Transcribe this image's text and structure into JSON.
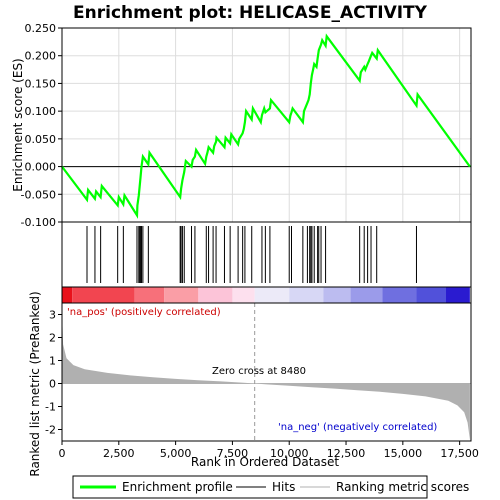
{
  "chart_data": {
    "type": "line",
    "title": "Enrichment plot: HELICASE_ACTIVITY",
    "xlabel": "Rank in Ordered Dataset",
    "ylabel_top": "Enrichment score (ES)",
    "ylabel_bottom": "Ranked list metric (PreRanked)",
    "x_range": [
      0,
      18000
    ],
    "es_ylim": [
      -0.1,
      0.25
    ],
    "metric_ylim": [
      -2.5,
      3.5
    ],
    "x_ticks": [
      "0",
      "2,500",
      "5,000",
      "7,500",
      "10,000",
      "12,500",
      "15,000",
      "17,500"
    ],
    "es_ticks": [
      "-0.100",
      "-0.050",
      "0.000",
      "0.050",
      "0.100",
      "0.150",
      "0.200",
      "0.250"
    ],
    "metric_ticks": [
      "-2",
      "-1",
      "0",
      "1",
      "2",
      "3"
    ],
    "series": [
      {
        "name": "Enrichment profile",
        "color": "#00ff00",
        "x": [
          0,
          1100,
          1150,
          1450,
          1500,
          1700,
          1750,
          2450,
          2500,
          2700,
          2750,
          3300,
          3320,
          3380,
          3420,
          3460,
          3500,
          3560,
          3800,
          3850,
          5200,
          5240,
          5300,
          5380,
          5450,
          5700,
          5750,
          5850,
          5900,
          6300,
          6350,
          6400,
          6450,
          6650,
          6700,
          6780,
          6800,
          7150,
          7200,
          7400,
          7450,
          7750,
          7800,
          7950,
          8000,
          8050,
          8100,
          8350,
          8400,
          8750,
          8800,
          8900,
          8950,
          9150,
          9200,
          10000,
          10050,
          10100,
          10150,
          10600,
          10650,
          10800,
          10850,
          10900,
          10950,
          11000,
          11050,
          11100,
          11200,
          11250,
          11300,
          11400,
          11450,
          11600,
          11650,
          13100,
          13150,
          13300,
          13350,
          13450,
          13500,
          13600,
          13650,
          13850,
          13900,
          15600,
          15650,
          17950
        ],
        "y": [
          0.0,
          -0.06,
          -0.042,
          -0.058,
          -0.045,
          -0.055,
          -0.035,
          -0.07,
          -0.055,
          -0.068,
          -0.052,
          -0.088,
          -0.07,
          -0.052,
          -0.035,
          -0.018,
          0.0,
          0.018,
          0.004,
          0.025,
          -0.055,
          -0.04,
          -0.025,
          -0.01,
          0.01,
          0.0,
          0.012,
          0.018,
          0.03,
          0.005,
          0.018,
          0.025,
          0.035,
          0.025,
          0.037,
          0.045,
          0.052,
          0.035,
          0.052,
          0.042,
          0.058,
          0.04,
          0.05,
          0.06,
          0.068,
          0.08,
          0.1,
          0.085,
          0.105,
          0.08,
          0.093,
          0.105,
          0.098,
          0.105,
          0.12,
          0.08,
          0.092,
          0.098,
          0.105,
          0.08,
          0.1,
          0.115,
          0.12,
          0.13,
          0.15,
          0.165,
          0.175,
          0.185,
          0.18,
          0.195,
          0.21,
          0.22,
          0.228,
          0.218,
          0.235,
          0.155,
          0.17,
          0.18,
          0.175,
          0.185,
          0.19,
          0.2,
          0.205,
          0.195,
          0.21,
          0.11,
          0.13,
          0.0
        ]
      },
      {
        "name": "Hits",
        "color": "#000000",
        "x": [
          1100,
          1450,
          1700,
          2450,
          2700,
          3300,
          3380,
          3420,
          3460,
          3500,
          3560,
          3800,
          5200,
          5240,
          5300,
          5380,
          5700,
          5850,
          6350,
          6450,
          6650,
          6780,
          7150,
          7400,
          7750,
          7950,
          8050,
          8350,
          8800,
          8950,
          9150,
          10000,
          10100,
          10600,
          10800,
          10900,
          10950,
          11000,
          11100,
          11250,
          11300,
          11400,
          11600,
          13100,
          13300,
          13450,
          13600,
          13850,
          15600
        ]
      },
      {
        "name": "Ranking metric scores",
        "color": "#b0b0b0",
        "x": [
          0,
          50,
          200,
          500,
          1000,
          2000,
          3000,
          4000,
          5000,
          6000,
          7000,
          8000,
          8480,
          9000,
          10000,
          11000,
          12000,
          13000,
          14000,
          15000,
          16000,
          17000,
          17400,
          17700,
          17850,
          17950
        ],
        "y": [
          3.2,
          1.7,
          1.1,
          0.8,
          0.62,
          0.46,
          0.35,
          0.27,
          0.2,
          0.14,
          0.09,
          0.03,
          0.0,
          -0.04,
          -0.1,
          -0.16,
          -0.22,
          -0.29,
          -0.36,
          -0.45,
          -0.56,
          -0.75,
          -0.95,
          -1.25,
          -1.7,
          -2.45
        ]
      }
    ],
    "annotations": {
      "pos": "'na_pos' (positively correlated)",
      "neg": "'na_neg' (negatively correlated)",
      "zero_cross": "Zero cross at 8480",
      "zero_cross_x": 8480
    },
    "colorbar": [
      {
        "x0": 0,
        "x1": 450,
        "color": "#e8111b"
      },
      {
        "x0": 450,
        "x1": 3200,
        "color": "#f24550"
      },
      {
        "x0": 3200,
        "x1": 4500,
        "color": "#f7707a"
      },
      {
        "x0": 4500,
        "x1": 6000,
        "color": "#fa9ea6"
      },
      {
        "x0": 6000,
        "x1": 7500,
        "color": "#fcc4d8"
      },
      {
        "x0": 7500,
        "x1": 8480,
        "color": "#fde0ee"
      },
      {
        "x0": 8480,
        "x1": 10000,
        "color": "#eceaf8"
      },
      {
        "x0": 10000,
        "x1": 11500,
        "color": "#d7d7f5"
      },
      {
        "x0": 11500,
        "x1": 12700,
        "color": "#bcbcf0"
      },
      {
        "x0": 12700,
        "x1": 14100,
        "color": "#9b9bea"
      },
      {
        "x0": 14100,
        "x1": 15600,
        "color": "#6f6fe0"
      },
      {
        "x0": 15600,
        "x1": 16900,
        "color": "#5151da"
      },
      {
        "x0": 16900,
        "x1": 17950,
        "color": "#2a1bd0"
      }
    ],
    "legend": [
      "Enrichment profile",
      "Hits",
      "Ranking metric scores"
    ],
    "legend_placement": "bottom"
  }
}
